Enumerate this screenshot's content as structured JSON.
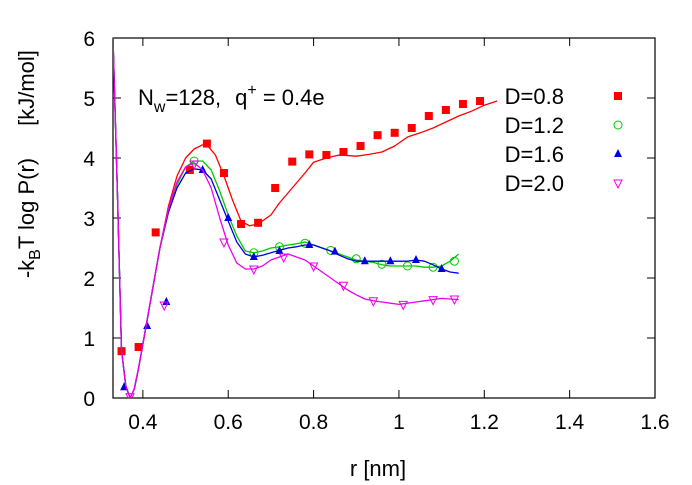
{
  "chart_data": {
    "type": "line",
    "title": "",
    "annotation": {
      "N": "N",
      "N_sub": "w",
      "N_value": "=128,",
      "q": "q",
      "q_sup": "+",
      "q_value": " = 0.4e"
    },
    "xlabel": "r [nm]",
    "ylabel": {
      "prefix": "-k",
      "sub": "B",
      "suffix": "T log P(r)",
      "unit": "[kJ/mol]"
    },
    "xlim": [
      0.33,
      1.6
    ],
    "ylim": [
      0,
      6
    ],
    "xticks": [
      0.4,
      0.6,
      0.8,
      1.0,
      1.2,
      1.4,
      1.6
    ],
    "xtick_labels": [
      "0.4",
      "0.6",
      "0.8",
      "1",
      "1.2",
      "1.4",
      "1.6"
    ],
    "yticks": [
      0,
      1,
      2,
      3,
      4,
      5,
      6
    ],
    "ytick_labels": [
      "0",
      "1",
      "2",
      "3",
      "4",
      "5",
      "6"
    ],
    "grid": false,
    "legend_position": "top-right",
    "series": [
      {
        "name": "D=0.8",
        "color": "#ff0000",
        "marker": "square",
        "x": [
          0.33,
          0.34,
          0.35,
          0.36,
          0.37,
          0.38,
          0.39,
          0.4,
          0.42,
          0.44,
          0.46,
          0.48,
          0.5,
          0.52,
          0.54,
          0.55,
          0.57,
          0.59,
          0.61,
          0.63,
          0.65,
          0.67,
          0.7,
          0.72,
          0.75,
          0.78,
          0.8,
          0.83,
          0.86,
          0.9,
          0.93,
          0.96,
          0.99,
          1.02,
          1.05,
          1.08,
          1.11,
          1.14,
          1.17,
          1.2,
          1.23
        ],
        "y": [
          6.0,
          3.5,
          0.8,
          0.2,
          0.0,
          0.15,
          0.5,
          0.9,
          1.7,
          2.5,
          3.2,
          3.7,
          4.0,
          4.15,
          4.22,
          4.22,
          4.05,
          3.7,
          3.3,
          2.95,
          2.87,
          2.9,
          3.05,
          3.25,
          3.5,
          3.75,
          3.93,
          4.0,
          4.05,
          4.03,
          4.06,
          4.1,
          4.2,
          4.35,
          4.42,
          4.5,
          4.6,
          4.7,
          4.78,
          4.88,
          4.95
        ],
        "marker_x": [
          0.35,
          0.39,
          0.43,
          0.51,
          0.55,
          0.59,
          0.63,
          0.67,
          0.71,
          0.75,
          0.79,
          0.83,
          0.87,
          0.91,
          0.95,
          0.99,
          1.03,
          1.07,
          1.11,
          1.15,
          1.19
        ],
        "marker_y": [
          0.78,
          0.85,
          2.76,
          3.8,
          4.24,
          3.75,
          2.9,
          2.92,
          3.5,
          3.94,
          4.06,
          4.05,
          4.1,
          4.2,
          4.38,
          4.42,
          4.5,
          4.7,
          4.8,
          4.9,
          4.95
        ]
      },
      {
        "name": "D=1.2",
        "color": "#00cc00",
        "marker": "circle",
        "x": [
          0.33,
          0.34,
          0.35,
          0.36,
          0.37,
          0.38,
          0.39,
          0.4,
          0.42,
          0.44,
          0.46,
          0.48,
          0.5,
          0.52,
          0.54,
          0.56,
          0.58,
          0.6,
          0.62,
          0.64,
          0.66,
          0.68,
          0.7,
          0.72,
          0.74,
          0.76,
          0.78,
          0.8,
          0.82,
          0.84,
          0.86,
          0.88,
          0.9,
          0.92,
          0.94,
          0.96,
          0.98,
          1.0,
          1.02,
          1.04,
          1.06,
          1.08,
          1.1,
          1.12,
          1.14
        ],
        "y": [
          6.0,
          3.5,
          0.8,
          0.2,
          0.0,
          0.15,
          0.5,
          0.9,
          1.7,
          2.5,
          3.1,
          3.55,
          3.85,
          3.95,
          3.95,
          3.8,
          3.45,
          3.05,
          2.7,
          2.45,
          2.42,
          2.45,
          2.5,
          2.52,
          2.55,
          2.57,
          2.6,
          2.55,
          2.5,
          2.45,
          2.4,
          2.35,
          2.3,
          2.28,
          2.26,
          2.22,
          2.2,
          2.2,
          2.2,
          2.2,
          2.18,
          2.18,
          2.2,
          2.28,
          2.4
        ],
        "marker_x": [
          0.52,
          0.66,
          0.72,
          0.78,
          0.84,
          0.9,
          0.96,
          1.02,
          1.08,
          1.13
        ],
        "marker_y": [
          3.95,
          2.42,
          2.52,
          2.58,
          2.46,
          2.32,
          2.23,
          2.2,
          2.18,
          2.28
        ]
      },
      {
        "name": "D=1.6",
        "color": "#0000dd",
        "marker": "triangle-up",
        "x": [
          0.33,
          0.34,
          0.35,
          0.36,
          0.37,
          0.38,
          0.39,
          0.4,
          0.42,
          0.44,
          0.46,
          0.48,
          0.5,
          0.52,
          0.54,
          0.56,
          0.58,
          0.6,
          0.62,
          0.64,
          0.66,
          0.68,
          0.7,
          0.72,
          0.74,
          0.76,
          0.78,
          0.8,
          0.82,
          0.84,
          0.86,
          0.88,
          0.9,
          0.92,
          0.94,
          0.96,
          0.98,
          1.0,
          1.02,
          1.04,
          1.06,
          1.08,
          1.1,
          1.12,
          1.14
        ],
        "y": [
          6.0,
          3.5,
          0.8,
          0.2,
          0.0,
          0.15,
          0.5,
          0.9,
          1.7,
          2.5,
          3.1,
          3.5,
          3.75,
          3.82,
          3.8,
          3.65,
          3.3,
          2.95,
          2.6,
          2.4,
          2.35,
          2.38,
          2.42,
          2.46,
          2.5,
          2.52,
          2.55,
          2.55,
          2.5,
          2.45,
          2.38,
          2.32,
          2.28,
          2.28,
          2.28,
          2.28,
          2.28,
          2.28,
          2.28,
          2.3,
          2.28,
          2.22,
          2.15,
          2.1,
          2.08
        ],
        "marker_x": [
          0.356,
          0.41,
          0.455,
          0.54,
          0.6,
          0.66,
          0.72,
          0.79,
          0.85,
          0.92,
          0.98,
          1.04,
          1.1
        ],
        "marker_y": [
          0.18,
          1.2,
          1.6,
          3.8,
          3.0,
          2.35,
          2.45,
          2.55,
          2.44,
          2.28,
          2.28,
          2.3,
          2.15
        ]
      },
      {
        "name": "D=2.0",
        "color": "#ee00ee",
        "marker": "triangle-down",
        "x": [
          0.33,
          0.34,
          0.35,
          0.36,
          0.37,
          0.38,
          0.39,
          0.4,
          0.42,
          0.44,
          0.46,
          0.48,
          0.5,
          0.52,
          0.54,
          0.56,
          0.58,
          0.6,
          0.62,
          0.64,
          0.66,
          0.68,
          0.7,
          0.72,
          0.74,
          0.76,
          0.78,
          0.8,
          0.82,
          0.84,
          0.86,
          0.88,
          0.9,
          0.92,
          0.94,
          0.96,
          0.98,
          1.0,
          1.02,
          1.04,
          1.06,
          1.08,
          1.1,
          1.12,
          1.14
        ],
        "y": [
          6.0,
          3.5,
          0.8,
          0.2,
          0.0,
          0.15,
          0.5,
          0.9,
          1.7,
          2.5,
          3.15,
          3.6,
          3.85,
          3.92,
          3.8,
          3.5,
          3.0,
          2.55,
          2.25,
          2.15,
          2.15,
          2.2,
          2.3,
          2.35,
          2.4,
          2.35,
          2.3,
          2.2,
          2.1,
          2.0,
          1.9,
          1.8,
          1.72,
          1.65,
          1.62,
          1.6,
          1.58,
          1.56,
          1.58,
          1.6,
          1.62,
          1.64,
          1.66,
          1.65,
          1.64
        ],
        "marker_x": [
          0.37,
          0.45,
          0.52,
          0.59,
          0.66,
          0.73,
          0.8,
          0.87,
          0.94,
          1.01,
          1.08,
          1.13
        ],
        "marker_y": [
          0.02,
          1.55,
          3.9,
          2.6,
          2.15,
          2.35,
          2.2,
          1.88,
          1.62,
          1.56,
          1.64,
          1.65
        ]
      }
    ]
  }
}
